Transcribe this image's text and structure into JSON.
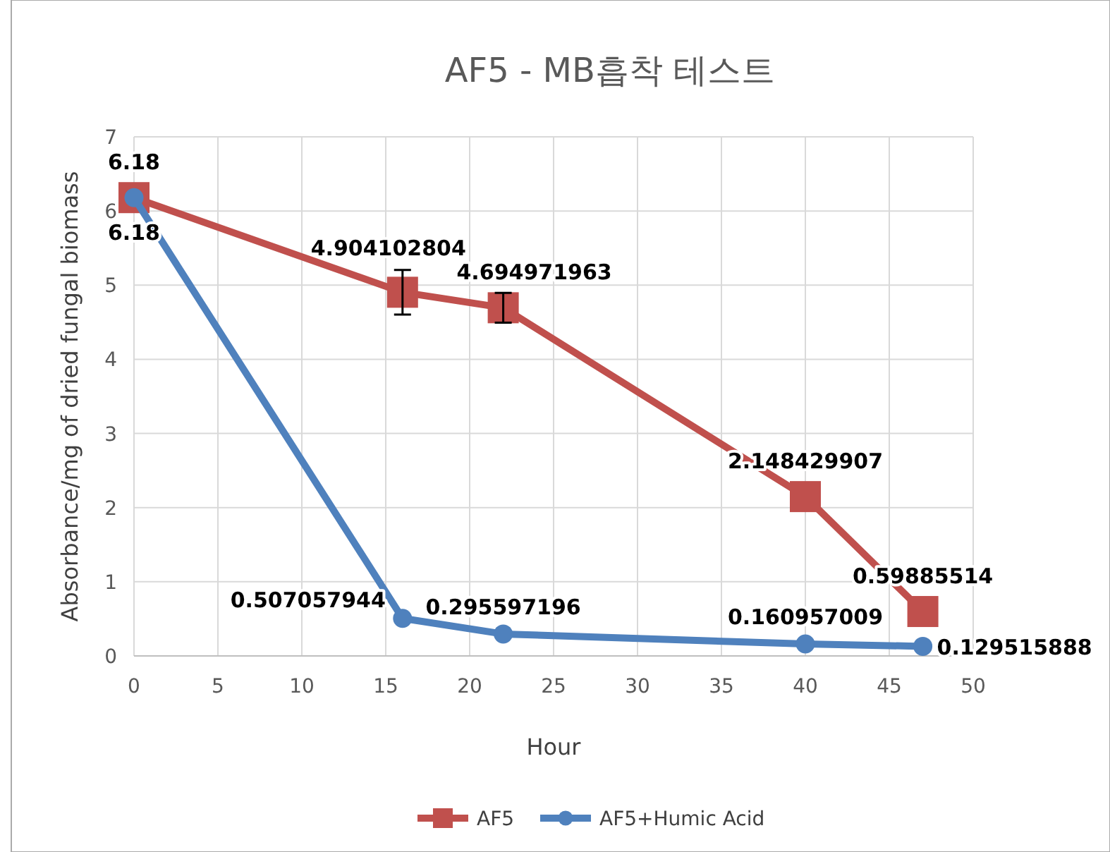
{
  "chart_data": {
    "type": "line",
    "title": "AF5 - MB흡착 테스트",
    "xlabel": "Hour",
    "ylabel": "Absorbance/mg of dried fungal biomass",
    "x": [
      0,
      16,
      22,
      40,
      47
    ],
    "series": [
      {
        "name": "AF5",
        "color": "#c0504d",
        "marker": "square",
        "values": [
          6.18,
          4.904102804,
          4.694971963,
          2.148429907,
          0.59885514
        ],
        "errors": [
          null,
          0.3,
          0.2,
          null,
          null
        ]
      },
      {
        "name": "AF5+Humic Acid",
        "color": "#4f81bd",
        "marker": "circle",
        "values": [
          6.18,
          0.507057944,
          0.295597196,
          0.160957009,
          0.129515888
        ]
      }
    ],
    "xlim": [
      0,
      50
    ],
    "xticks": [
      0,
      5,
      10,
      15,
      20,
      25,
      30,
      35,
      40,
      45,
      50
    ],
    "ylim": [
      0,
      7
    ],
    "yticks": [
      0,
      1,
      2,
      3,
      4,
      5,
      6,
      7
    ],
    "grid": true,
    "legend": "bottom",
    "data_labels": true,
    "line_style": "solid"
  }
}
